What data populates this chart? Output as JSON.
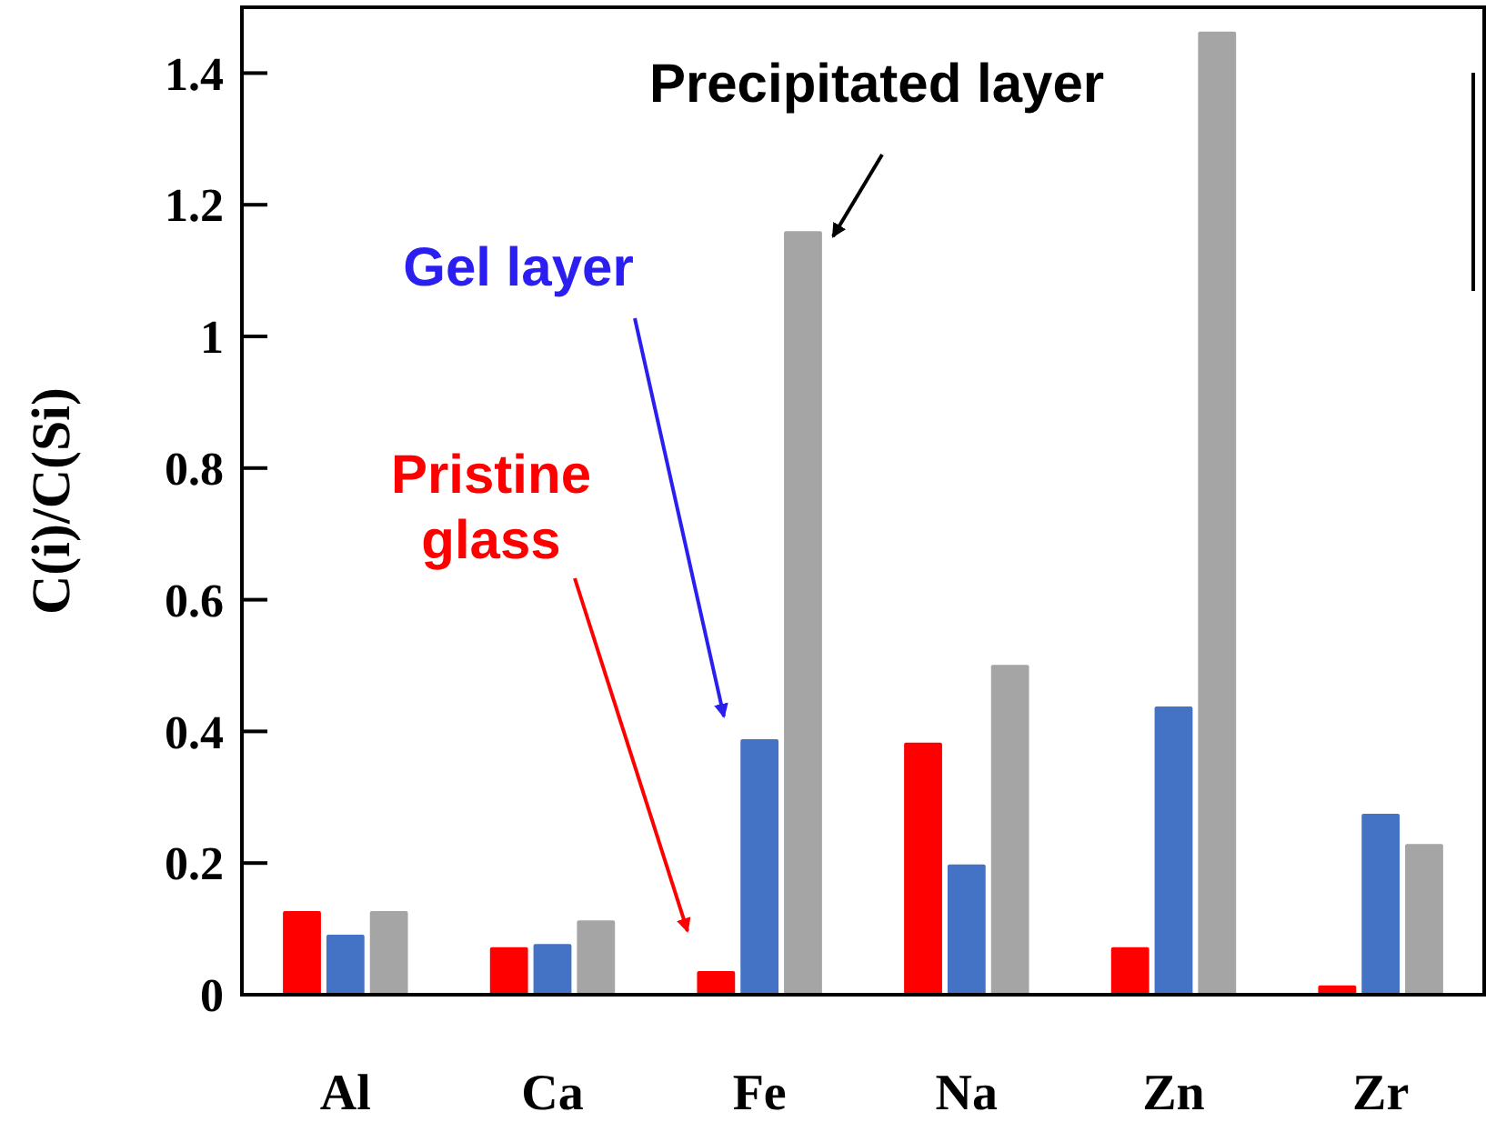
{
  "chart_data": {
    "type": "bar",
    "ylabel": "C(i)/C(Si)",
    "categories": [
      "Al",
      "Ca",
      "Fe",
      "Na",
      "Zn",
      "Zr"
    ],
    "series": [
      {
        "color": "#ff0000",
        "values": [
          0.127,
          0.072,
          0.036,
          0.383,
          0.072,
          0.014
        ]
      },
      {
        "color": "#4472c4",
        "values": [
          0.091,
          0.077,
          0.388,
          0.198,
          0.438,
          0.275
        ]
      },
      {
        "color": "#a5a5a5",
        "values": [
          0.127,
          0.113,
          1.16,
          0.501,
          1.463,
          0.229
        ]
      }
    ],
    "ylim": [
      0,
      1.5
    ],
    "yticks": [
      {
        "value": 0,
        "label": "0"
      },
      0.2,
      0.4,
      0.6,
      0.8,
      {
        "value": 1,
        "label": "1"
      },
      1.2,
      1.4
    ],
    "annotations": [
      "Pristine glass",
      "Gel layer",
      "Precipitated layer"
    ],
    "grid": false
  }
}
